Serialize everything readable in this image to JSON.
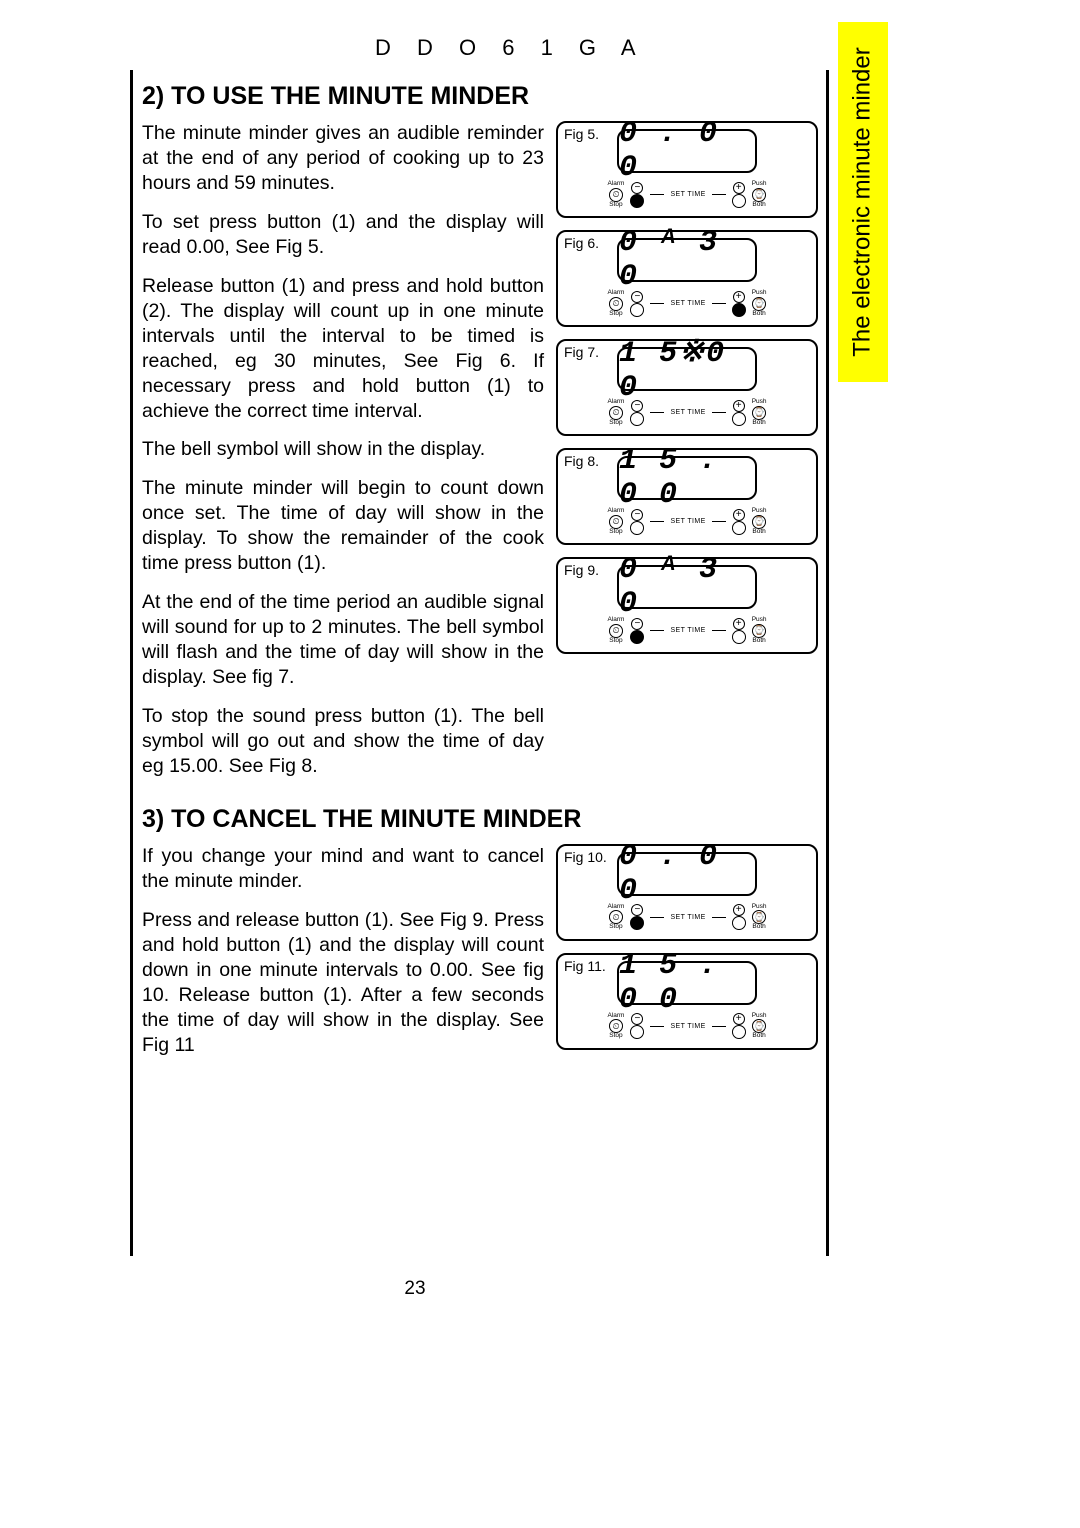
{
  "model": "D D O 6 1 G A",
  "sideTab": "The electronic minute minder",
  "pageNumber": "23",
  "section2": {
    "title": "2)  TO USE THE MINUTE MINDER",
    "paragraphs": [
      "The minute minder gives an audible reminder at the end of any period of cooking up to 23 hours and 59 minutes.",
      "To set press button (1) and the display will read 0.00, See Fig 5.",
      "Release button (1) and press and hold button (2).  The display will count up in one minute intervals until the interval to be timed is reached, eg 30 minutes, See Fig 6.  If necessary press and hold button (1) to achieve the correct time interval.",
      "The bell symbol will show in the display.",
      "The minute minder will begin to count down once set.  The time of day will show in the display.  To show the remainder of the cook time press button (1).",
      "At the end of the time period an audible signal will sound for up to 2 minutes.  The bell symbol will flash and the time of day will show in the display.  See fig 7.",
      "To stop the sound press button (1).  The bell symbol will go out and show the time of day eg 15.00.  See Fig 8."
    ]
  },
  "section3": {
    "title": "3) TO CANCEL THE MINUTE MINDER",
    "paragraphs": [
      "If you change your mind and want to cancel the minute minder.",
      "Press and release button (1).  See Fig 9.  Press and hold button (1) and the display will count down in one minute intervals to 0.00. See fig 10.  Release button (1).  After a few seconds the time of day will show in the display.  See Fig 11"
    ]
  },
  "figures": {
    "f5": {
      "label": "Fig 5.",
      "display": "0 . 0 0",
      "minusFilled": true,
      "plusFilled": false,
      "showBell": false
    },
    "f6": {
      "label": "Fig 6.",
      "display": "0 ᴬ 3 0",
      "minusFilled": false,
      "plusFilled": true,
      "showBell": false
    },
    "f7": {
      "label": "Fig 7.",
      "display": "1 5※0 0",
      "minusFilled": false,
      "plusFilled": false,
      "showBell": false
    },
    "f8": {
      "label": "Fig 8.",
      "display": "1 5 . 0 0",
      "minusFilled": false,
      "plusFilled": false,
      "showBell": false
    },
    "f9": {
      "label": "Fig 9.",
      "display": "0 ᴬ 3 0",
      "minusFilled": true,
      "plusFilled": false,
      "showBell": false
    },
    "f10": {
      "label": "Fig 10.",
      "display": "0 . 0 0",
      "minusFilled": true,
      "plusFilled": false,
      "showBell": false
    },
    "f11": {
      "label": "Fig 11.",
      "display": "1 5 . 0 0",
      "minusFilled": false,
      "plusFilled": false,
      "showBell": false
    }
  },
  "controlLabels": {
    "alarmTop": "Alarm",
    "alarmBot": "Stop",
    "setTime": "SET TIME",
    "pushTop": "Push",
    "pushBot": "Both",
    "clockGlyph": "⏲",
    "cookGlyph": "⌚"
  },
  "colors": {
    "tabBg": "#ffff00",
    "ink": "#000000",
    "pageBg": "#ffffff"
  }
}
